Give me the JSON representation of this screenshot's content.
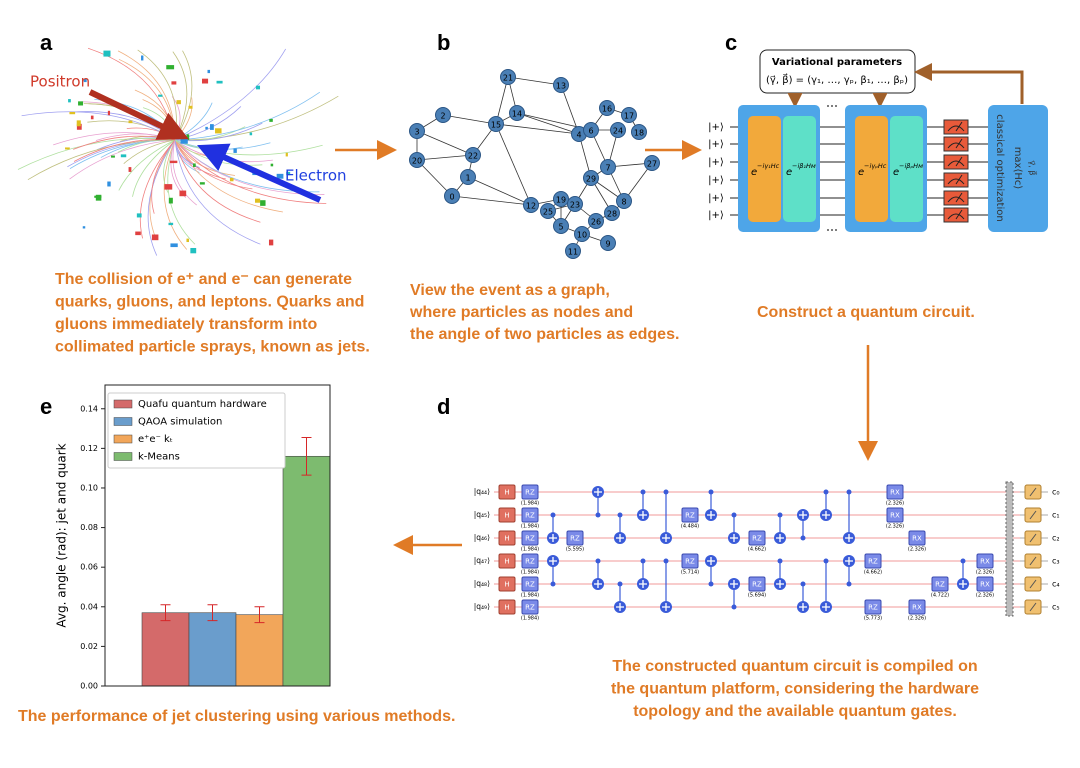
{
  "panel_a": {
    "label": "a",
    "positron": "Positron",
    "electron": "Electron",
    "caption": [
      "The collision of e⁺ and e⁻ can generate",
      "quarks, gluons, and leptons. Quarks and",
      "gluons immediately transform into",
      "collimated particle sprays, known as jets."
    ]
  },
  "panel_b": {
    "label": "b",
    "nodes": [
      "21",
      "13",
      "2",
      "14",
      "15",
      "3",
      "16",
      "17",
      "4",
      "6",
      "24",
      "18",
      "20",
      "22",
      "7",
      "27",
      "1",
      "29",
      "8",
      "28",
      "0",
      "12",
      "19",
      "25",
      "23",
      "26",
      "5",
      "10",
      "11",
      "9"
    ],
    "caption": [
      "View the event as a graph,",
      "where particles as nodes and",
      "the angle of two particles as edges."
    ]
  },
  "panel_c": {
    "label": "c",
    "params_title": "Variational parameters",
    "params": "(γ⃗, β⃗) = (γ₁, …, γₚ, β₁, …, βₚ)",
    "inputs": [
      "|+⟩",
      "|+⟩",
      "|+⟩",
      "|+⟩",
      "|+⟩",
      "|+⟩"
    ],
    "gates": [
      {
        "base": "e",
        "exp": "−iγ₁Hc"
      },
      {
        "base": "e",
        "exp": "−iβ₁Hм"
      },
      {
        "base": "e",
        "exp": "−iγₚHc"
      },
      {
        "base": "e",
        "exp": "−iβₚHм"
      }
    ],
    "optimizer": "classical optimization",
    "objective": "max⟨Hc⟩",
    "objective_sub": "γ⃗, β⃗",
    "caption": [
      "Construct a quantum circuit."
    ]
  },
  "panel_d": {
    "label": "d",
    "qubits": [
      "|q₄₄⟩",
      "|q₄₅⟩",
      "|q₄₆⟩",
      "|q₄₇⟩",
      "|q₄₈⟩",
      "|q₄₉⟩"
    ],
    "clbits": [
      "c₀",
      "c₁",
      "c₂",
      "c₃",
      "c₄",
      "c₅"
    ],
    "gates": [
      {
        "label": "H"
      },
      {
        "label": "H"
      },
      {
        "label": "H"
      },
      {
        "label": "H"
      },
      {
        "label": "H"
      },
      {
        "label": "H"
      },
      {
        "label": "RZ",
        "param": "(1.984)"
      },
      {
        "label": "RZ",
        "param": "(1.984)"
      },
      {
        "label": "RZ",
        "param": "(1.984)"
      },
      {
        "label": "RZ",
        "param": "(1.984)"
      },
      {
        "label": "RZ",
        "param": "(1.984)"
      },
      {
        "label": "RZ",
        "param": "(1.984)"
      },
      {
        "label": "RZ",
        "param": "(5.595)"
      },
      {
        "label": "RZ",
        "param": "(4.484)"
      },
      {
        "label": "RZ",
        "param": "(5.714)"
      },
      {
        "label": "RZ",
        "param": "(4.662)"
      },
      {
        "label": "RZ",
        "param": "(5.694)"
      },
      {
        "label": "RZ",
        "param": "(4.662)"
      },
      {
        "label": "RZ",
        "param": "(5.773)"
      },
      {
        "label": "RX",
        "param": "(2.326)"
      },
      {
        "label": "RX",
        "param": "(2.326)"
      },
      {
        "label": "RX",
        "param": "(2.326)"
      },
      {
        "label": "RX",
        "param": "(2.326)"
      },
      {
        "label": "RZ",
        "param": "(4.722)"
      },
      {
        "label": "RX",
        "param": "(2.326)"
      },
      {
        "label": "RX",
        "param": "(2.326)"
      }
    ],
    "caption": [
      "The constructed quantum circuit is compiled on",
      "the quantum platform, considering the hardware",
      "topology and the available quantum gates."
    ]
  },
  "panel_e": {
    "label": "e",
    "caption": [
      "The performance of jet clustering using various methods."
    ]
  },
  "chart_data": {
    "type": "bar",
    "ylabel": "Avg. angle (rad): jet and quark",
    "series": [
      {
        "name": "Quafu quantum hardware",
        "color": "#d46a6a",
        "values": [
          0.037
        ],
        "errors": [
          0.004
        ]
      },
      {
        "name": "QAOA simulation",
        "color": "#6a9dcc",
        "values": [
          0.037
        ],
        "errors": [
          0.004
        ]
      },
      {
        "name": "e⁺e⁻ kₜ",
        "color": "#f2a65a",
        "values": [
          0.036
        ],
        "errors": [
          0.004
        ]
      },
      {
        "name": "k-Means",
        "color": "#7dbb6f",
        "values": [
          0.116
        ],
        "errors": [
          0.0095
        ]
      }
    ],
    "ylim": [
      0,
      0.152
    ],
    "yticks": [
      {
        "value": 0,
        "label": "0.00"
      },
      0.02,
      0.04,
      0.06,
      0.08,
      {
        "value": 0.1,
        "label": "0.10"
      },
      0.12,
      0.14
    ],
    "error_color": "#d62728",
    "legend": "upper left",
    "grid": false
  }
}
